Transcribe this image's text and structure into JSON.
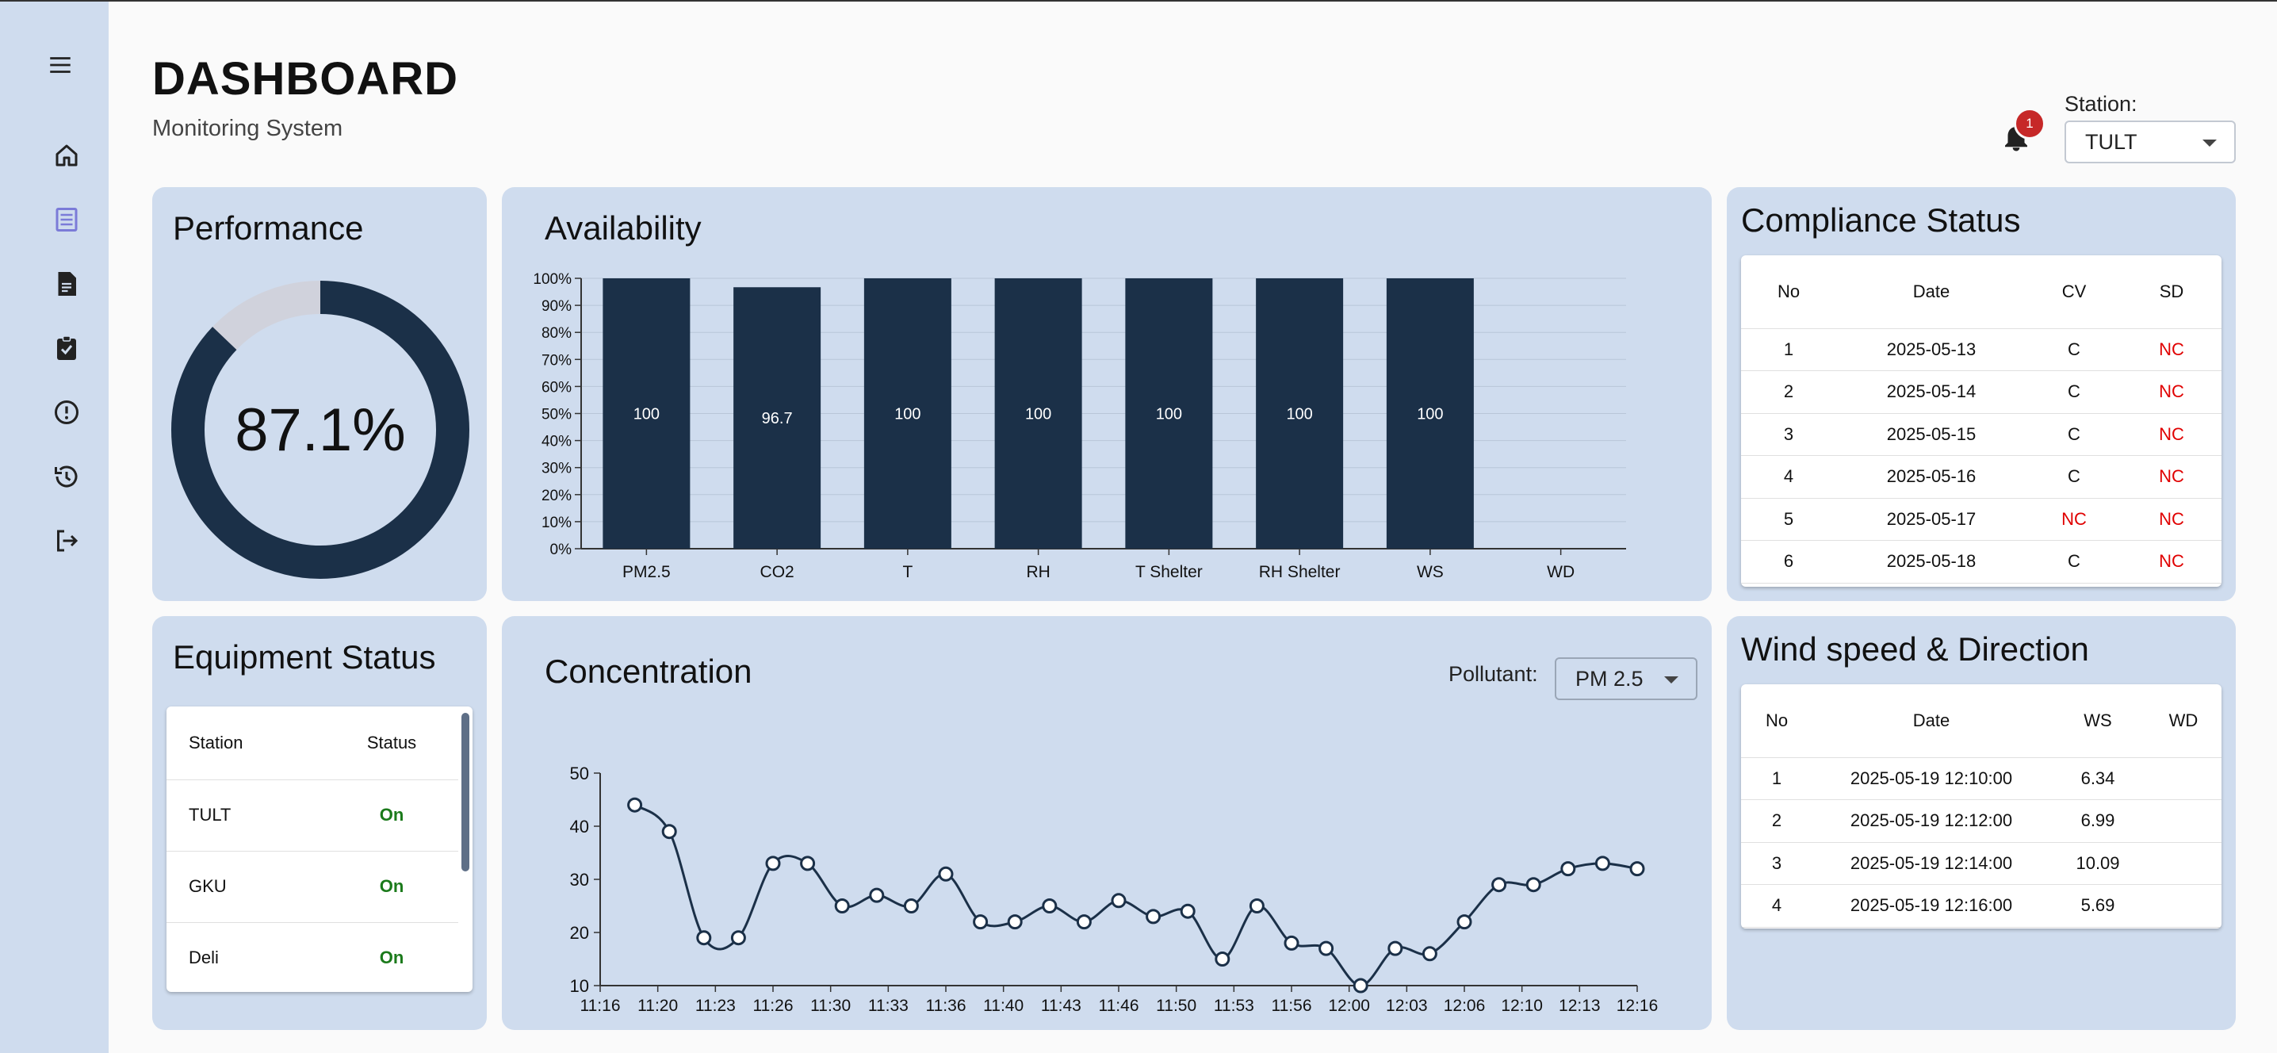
{
  "header": {
    "title": "DASHBOARD",
    "subtitle": "Monitoring System"
  },
  "notifications": {
    "count": "1"
  },
  "station": {
    "label": "Station:",
    "value": "TULT"
  },
  "sidebar": {
    "items": [
      {
        "icon": "home-icon"
      },
      {
        "icon": "list-icon",
        "active": true
      },
      {
        "icon": "report-icon"
      },
      {
        "icon": "clipboard-check-icon"
      },
      {
        "icon": "alert-icon"
      },
      {
        "icon": "history-icon"
      },
      {
        "icon": "logout-icon"
      }
    ]
  },
  "performance": {
    "title": "Performance",
    "value": 87.1,
    "value_label": "87.1%"
  },
  "availability": {
    "title": "Availability",
    "chart_data": {
      "type": "bar",
      "categories": [
        "PM2.5",
        "CO2",
        "T",
        "RH",
        "T Shelter",
        "RH Shelter",
        "WS",
        "WD"
      ],
      "values": [
        100,
        96.7,
        100,
        100,
        100,
        100,
        100,
        0
      ],
      "data_labels": [
        "100",
        "96.7",
        "100",
        "100",
        "100",
        "100",
        "100",
        ""
      ],
      "ylim": [
        0,
        100
      ],
      "yticks": [
        "0%",
        "10%",
        "20%",
        "30%",
        "40%",
        "50%",
        "60%",
        "70%",
        "80%",
        "90%",
        "100%"
      ],
      "grid": true,
      "color": "#1b3048"
    }
  },
  "compliance": {
    "title": "Compliance Status",
    "columns": [
      "No",
      "Date",
      "CV",
      "SD"
    ],
    "rows": [
      [
        "1",
        "2025-05-13",
        "C",
        "NC"
      ],
      [
        "2",
        "2025-05-14",
        "C",
        "NC"
      ],
      [
        "3",
        "2025-05-15",
        "C",
        "NC"
      ],
      [
        "4",
        "2025-05-16",
        "C",
        "NC"
      ],
      [
        "5",
        "2025-05-17",
        "NC",
        "NC"
      ],
      [
        "6",
        "2025-05-18",
        "C",
        "NC"
      ]
    ]
  },
  "equipment": {
    "title": "Equipment Status",
    "columns": [
      "Station",
      "Status"
    ],
    "rows": [
      [
        "TULT",
        "On"
      ],
      [
        "GKU",
        "On"
      ],
      [
        "Deli",
        "On"
      ]
    ]
  },
  "concentration": {
    "title": "Concentration",
    "pollutant_label": "Pollutant:",
    "pollutant_value": "PM 2.5",
    "chart_data": {
      "type": "line",
      "x_ticks": [
        "11:16",
        "11:20",
        "11:23",
        "11:26",
        "11:30",
        "11:33",
        "11:36",
        "11:40",
        "11:43",
        "11:46",
        "11:50",
        "11:53",
        "11:56",
        "12:00",
        "12:03",
        "12:06",
        "12:10",
        "12:13",
        "12:16"
      ],
      "x_range": [
        "11:16",
        "12:16"
      ],
      "y_ticks": [
        10,
        20,
        30,
        40,
        50
      ],
      "ylim": [
        10,
        50
      ],
      "points": [
        [
          "11:18",
          44
        ],
        [
          "11:20",
          39
        ],
        [
          "11:22",
          19
        ],
        [
          "11:24",
          19
        ],
        [
          "11:26",
          33
        ],
        [
          "11:28",
          33
        ],
        [
          "11:30",
          25
        ],
        [
          "11:32",
          27
        ],
        [
          "11:34",
          25
        ],
        [
          "11:36",
          31
        ],
        [
          "11:38",
          22
        ],
        [
          "11:40",
          22
        ],
        [
          "11:42",
          25
        ],
        [
          "11:44",
          22
        ],
        [
          "11:46",
          26
        ],
        [
          "11:48",
          23
        ],
        [
          "11:50",
          24
        ],
        [
          "11:52",
          15
        ],
        [
          "11:54",
          25
        ],
        [
          "11:56",
          18
        ],
        [
          "11:58",
          17
        ],
        [
          "12:00",
          10
        ],
        [
          "12:02",
          17
        ],
        [
          "12:04",
          16
        ],
        [
          "12:06",
          22
        ],
        [
          "12:08",
          29
        ],
        [
          "12:10",
          29
        ],
        [
          "12:12",
          32
        ],
        [
          "12:14",
          33
        ],
        [
          "12:16",
          32
        ]
      ],
      "color": "#1b3048"
    }
  },
  "wind": {
    "title": "Wind speed & Direction",
    "columns": [
      "No",
      "Date",
      "WS",
      "WD"
    ],
    "rows": [
      [
        "1",
        "2025-05-19 12:10:00",
        "6.34",
        ""
      ],
      [
        "2",
        "2025-05-19 12:12:00",
        "6.99",
        ""
      ],
      [
        "3",
        "2025-05-19 12:14:00",
        "10.09",
        ""
      ],
      [
        "4",
        "2025-05-19 12:16:00",
        "5.69",
        ""
      ]
    ]
  }
}
